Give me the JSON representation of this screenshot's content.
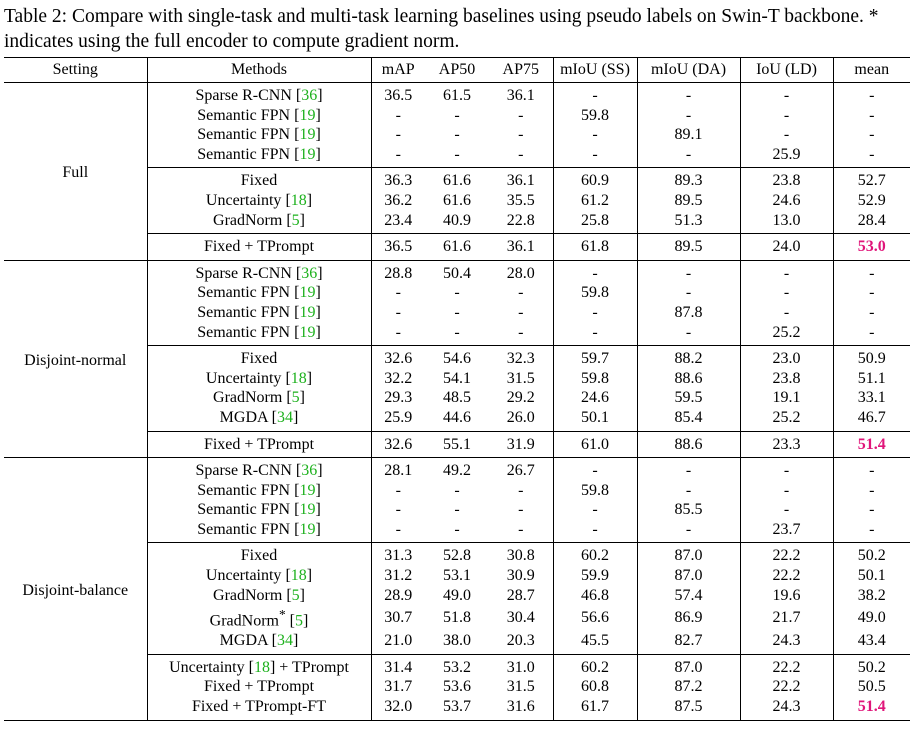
{
  "caption": "Table 2: Compare with single-task and multi-task learning baselines using pseudo labels on Swin-T backbone. * indicates using the full encoder to compute gradient norm.",
  "header": [
    "Setting",
    "Methods",
    "mAP",
    "AP50",
    "AP75",
    "mIoU (SS)",
    "mIoU (DA)",
    "IoU (LD)",
    "mean"
  ],
  "best_color": "#e0157a",
  "ref_color": "#1db11d",
  "settings": [
    {
      "name": "Full",
      "groups": [
        [
          {
            "method": "Sparse R-CNN",
            "ref": "36",
            "sup": "",
            "suffix": "",
            "values": [
              "36.5",
              "61.5",
              "36.1",
              "-",
              "-",
              "-",
              "-"
            ]
          },
          {
            "method": "Semantic FPN",
            "ref": "19",
            "sup": "",
            "suffix": "",
            "values": [
              "-",
              "-",
              "-",
              "59.8",
              "-",
              "-",
              "-"
            ]
          },
          {
            "method": "Semantic FPN",
            "ref": "19",
            "sup": "",
            "suffix": "",
            "values": [
              "-",
              "-",
              "-",
              "-",
              "89.1",
              "-",
              "-"
            ]
          },
          {
            "method": "Semantic FPN",
            "ref": "19",
            "sup": "",
            "suffix": "",
            "values": [
              "-",
              "-",
              "-",
              "-",
              "-",
              "25.9",
              "-"
            ]
          }
        ],
        [
          {
            "method": "Fixed",
            "ref": "",
            "sup": "",
            "suffix": "",
            "values": [
              "36.3",
              "61.6",
              "36.1",
              "60.9",
              "89.3",
              "23.8",
              "52.7"
            ]
          },
          {
            "method": "Uncertainty",
            "ref": "18",
            "sup": "",
            "suffix": "",
            "values": [
              "36.2",
              "61.6",
              "35.5",
              "61.2",
              "89.5",
              "24.6",
              "52.9"
            ]
          },
          {
            "method": "GradNorm",
            "ref": "5",
            "sup": "",
            "suffix": "",
            "values": [
              "23.4",
              "40.9",
              "22.8",
              "25.8",
              "51.3",
              "13.0",
              "28.4"
            ]
          }
        ],
        [
          {
            "method": "Fixed + TPrompt",
            "ref": "",
            "sup": "",
            "suffix": "",
            "values": [
              "36.5",
              "61.6",
              "36.1",
              "61.8",
              "89.5",
              "24.0",
              "53.0"
            ],
            "best": true
          }
        ]
      ]
    },
    {
      "name": "Disjoint-normal",
      "groups": [
        [
          {
            "method": "Sparse R-CNN",
            "ref": "36",
            "sup": "",
            "suffix": "",
            "values": [
              "28.8",
              "50.4",
              "28.0",
              "-",
              "-",
              "-",
              "-"
            ]
          },
          {
            "method": "Semantic FPN",
            "ref": "19",
            "sup": "",
            "suffix": "",
            "values": [
              "-",
              "-",
              "-",
              "59.8",
              "-",
              "-",
              "-"
            ]
          },
          {
            "method": "Semantic FPN",
            "ref": "19",
            "sup": "",
            "suffix": "",
            "values": [
              "-",
              "-",
              "-",
              "-",
              "87.8",
              "-",
              "-"
            ]
          },
          {
            "method": "Semantic FPN",
            "ref": "19",
            "sup": "",
            "suffix": "",
            "values": [
              "-",
              "-",
              "-",
              "-",
              "-",
              "25.2",
              "-"
            ]
          }
        ],
        [
          {
            "method": "Fixed",
            "ref": "",
            "sup": "",
            "suffix": "",
            "values": [
              "32.6",
              "54.6",
              "32.3",
              "59.7",
              "88.2",
              "23.0",
              "50.9"
            ]
          },
          {
            "method": "Uncertainty",
            "ref": "18",
            "sup": "",
            "suffix": "",
            "values": [
              "32.2",
              "54.1",
              "31.5",
              "59.8",
              "88.6",
              "23.8",
              "51.1"
            ]
          },
          {
            "method": "GradNorm",
            "ref": "5",
            "sup": "",
            "suffix": "",
            "values": [
              "29.3",
              "48.5",
              "29.2",
              "24.6",
              "59.5",
              "19.1",
              "33.1"
            ]
          },
          {
            "method": "MGDA",
            "ref": "34",
            "sup": "",
            "suffix": "",
            "values": [
              "25.9",
              "44.6",
              "26.0",
              "50.1",
              "85.4",
              "25.2",
              "46.7"
            ]
          }
        ],
        [
          {
            "method": "Fixed + TPrompt",
            "ref": "",
            "sup": "",
            "suffix": "",
            "values": [
              "32.6",
              "55.1",
              "31.9",
              "61.0",
              "88.6",
              "23.3",
              "51.4"
            ],
            "best": true
          }
        ]
      ]
    },
    {
      "name": "Disjoint-balance",
      "groups": [
        [
          {
            "method": "Sparse R-CNN",
            "ref": "36",
            "sup": "",
            "suffix": "",
            "values": [
              "28.1",
              "49.2",
              "26.7",
              "-",
              "-",
              "-",
              "-"
            ]
          },
          {
            "method": "Semantic FPN",
            "ref": "19",
            "sup": "",
            "suffix": "",
            "values": [
              "-",
              "-",
              "-",
              "59.8",
              "-",
              "-",
              "-"
            ]
          },
          {
            "method": "Semantic FPN",
            "ref": "19",
            "sup": "",
            "suffix": "",
            "values": [
              "-",
              "-",
              "-",
              "-",
              "85.5",
              "-",
              "-"
            ]
          },
          {
            "method": "Semantic FPN",
            "ref": "19",
            "sup": "",
            "suffix": "",
            "values": [
              "-",
              "-",
              "-",
              "-",
              "-",
              "23.7",
              "-"
            ]
          }
        ],
        [
          {
            "method": "Fixed",
            "ref": "",
            "sup": "",
            "suffix": "",
            "values": [
              "31.3",
              "52.8",
              "30.8",
              "60.2",
              "87.0",
              "22.2",
              "50.2"
            ]
          },
          {
            "method": "Uncertainty",
            "ref": "18",
            "sup": "",
            "suffix": "",
            "values": [
              "31.2",
              "53.1",
              "30.9",
              "59.9",
              "87.0",
              "22.2",
              "50.1"
            ]
          },
          {
            "method": "GradNorm",
            "ref": "5",
            "sup": "",
            "suffix": "",
            "values": [
              "28.9",
              "49.0",
              "28.7",
              "46.8",
              "57.4",
              "19.6",
              "38.2"
            ]
          },
          {
            "method": "GradNorm",
            "ref": "5",
            "sup": "*",
            "suffix": "",
            "values": [
              "30.7",
              "51.8",
              "30.4",
              "56.6",
              "86.9",
              "21.7",
              "49.0"
            ]
          },
          {
            "method": "MGDA",
            "ref": "34",
            "sup": "",
            "suffix": "",
            "values": [
              "21.0",
              "38.0",
              "20.3",
              "45.5",
              "82.7",
              "24.3",
              "43.4"
            ]
          }
        ],
        [
          {
            "method": "Uncertainty",
            "ref": "18",
            "sup": "",
            "suffix": " + TPrompt",
            "values": [
              "31.4",
              "53.2",
              "31.0",
              "60.2",
              "87.0",
              "22.2",
              "50.2"
            ]
          },
          {
            "method": "Fixed + TPrompt",
            "ref": "",
            "sup": "",
            "suffix": "",
            "values": [
              "31.7",
              "53.6",
              "31.5",
              "60.8",
              "87.2",
              "22.2",
              "50.5"
            ]
          },
          {
            "method": "Fixed + TPrompt-FT",
            "ref": "",
            "sup": "",
            "suffix": "",
            "values": [
              "32.0",
              "53.7",
              "31.6",
              "61.7",
              "87.5",
              "24.3",
              "51.4"
            ],
            "best": true
          }
        ]
      ]
    }
  ]
}
